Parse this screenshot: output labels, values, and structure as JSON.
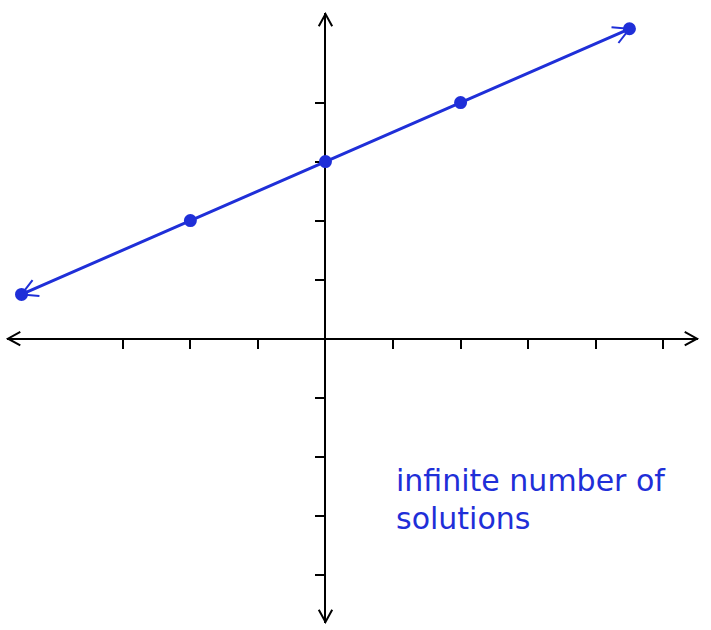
{
  "chart_data": {
    "type": "line",
    "annotations": [
      "infinite number of solutions"
    ],
    "x": [
      -4.5,
      -2,
      0,
      2,
      4.5
    ],
    "values": [
      0.75,
      2,
      3,
      4,
      5.25
    ],
    "color": "#1f2fd8",
    "marker": "circle",
    "xlim": [
      -4.7,
      5.5
    ],
    "ylim": [
      -4.8,
      5.5
    ],
    "xticks": [
      -3,
      -2,
      -1,
      0,
      1,
      2,
      3,
      4,
      5
    ],
    "yticks": [
      -4,
      -3,
      -2,
      -1,
      0,
      1,
      2,
      3,
      4
    ],
    "grid": false,
    "tick_labels": false
  }
}
